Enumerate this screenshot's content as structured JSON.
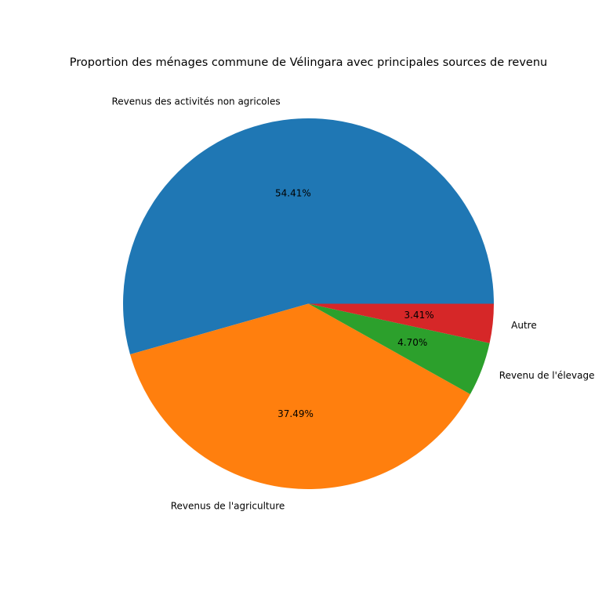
{
  "chart_data": {
    "type": "pie",
    "title": "Proportion des ménages commune de Vélingara  avec principales sources de revenu",
    "slices": [
      {
        "label": "Revenus des activités non agricoles",
        "value": 54.41,
        "pct_label": "54.41%",
        "color": "#1f77b4"
      },
      {
        "label": "Revenus de l'agriculture",
        "value": 37.49,
        "pct_label": "37.49%",
        "color": "#ff7f0e"
      },
      {
        "label": "Revenu de l'élevage",
        "value": 4.7,
        "pct_label": "4.70%",
        "color": "#2ca02c"
      },
      {
        "label": "Autre",
        "value": 3.41,
        "pct_label": "3.41%",
        "color": "#d62728"
      }
    ],
    "start_angle_deg": 0,
    "direction": "counterclockwise",
    "legend": "none"
  }
}
